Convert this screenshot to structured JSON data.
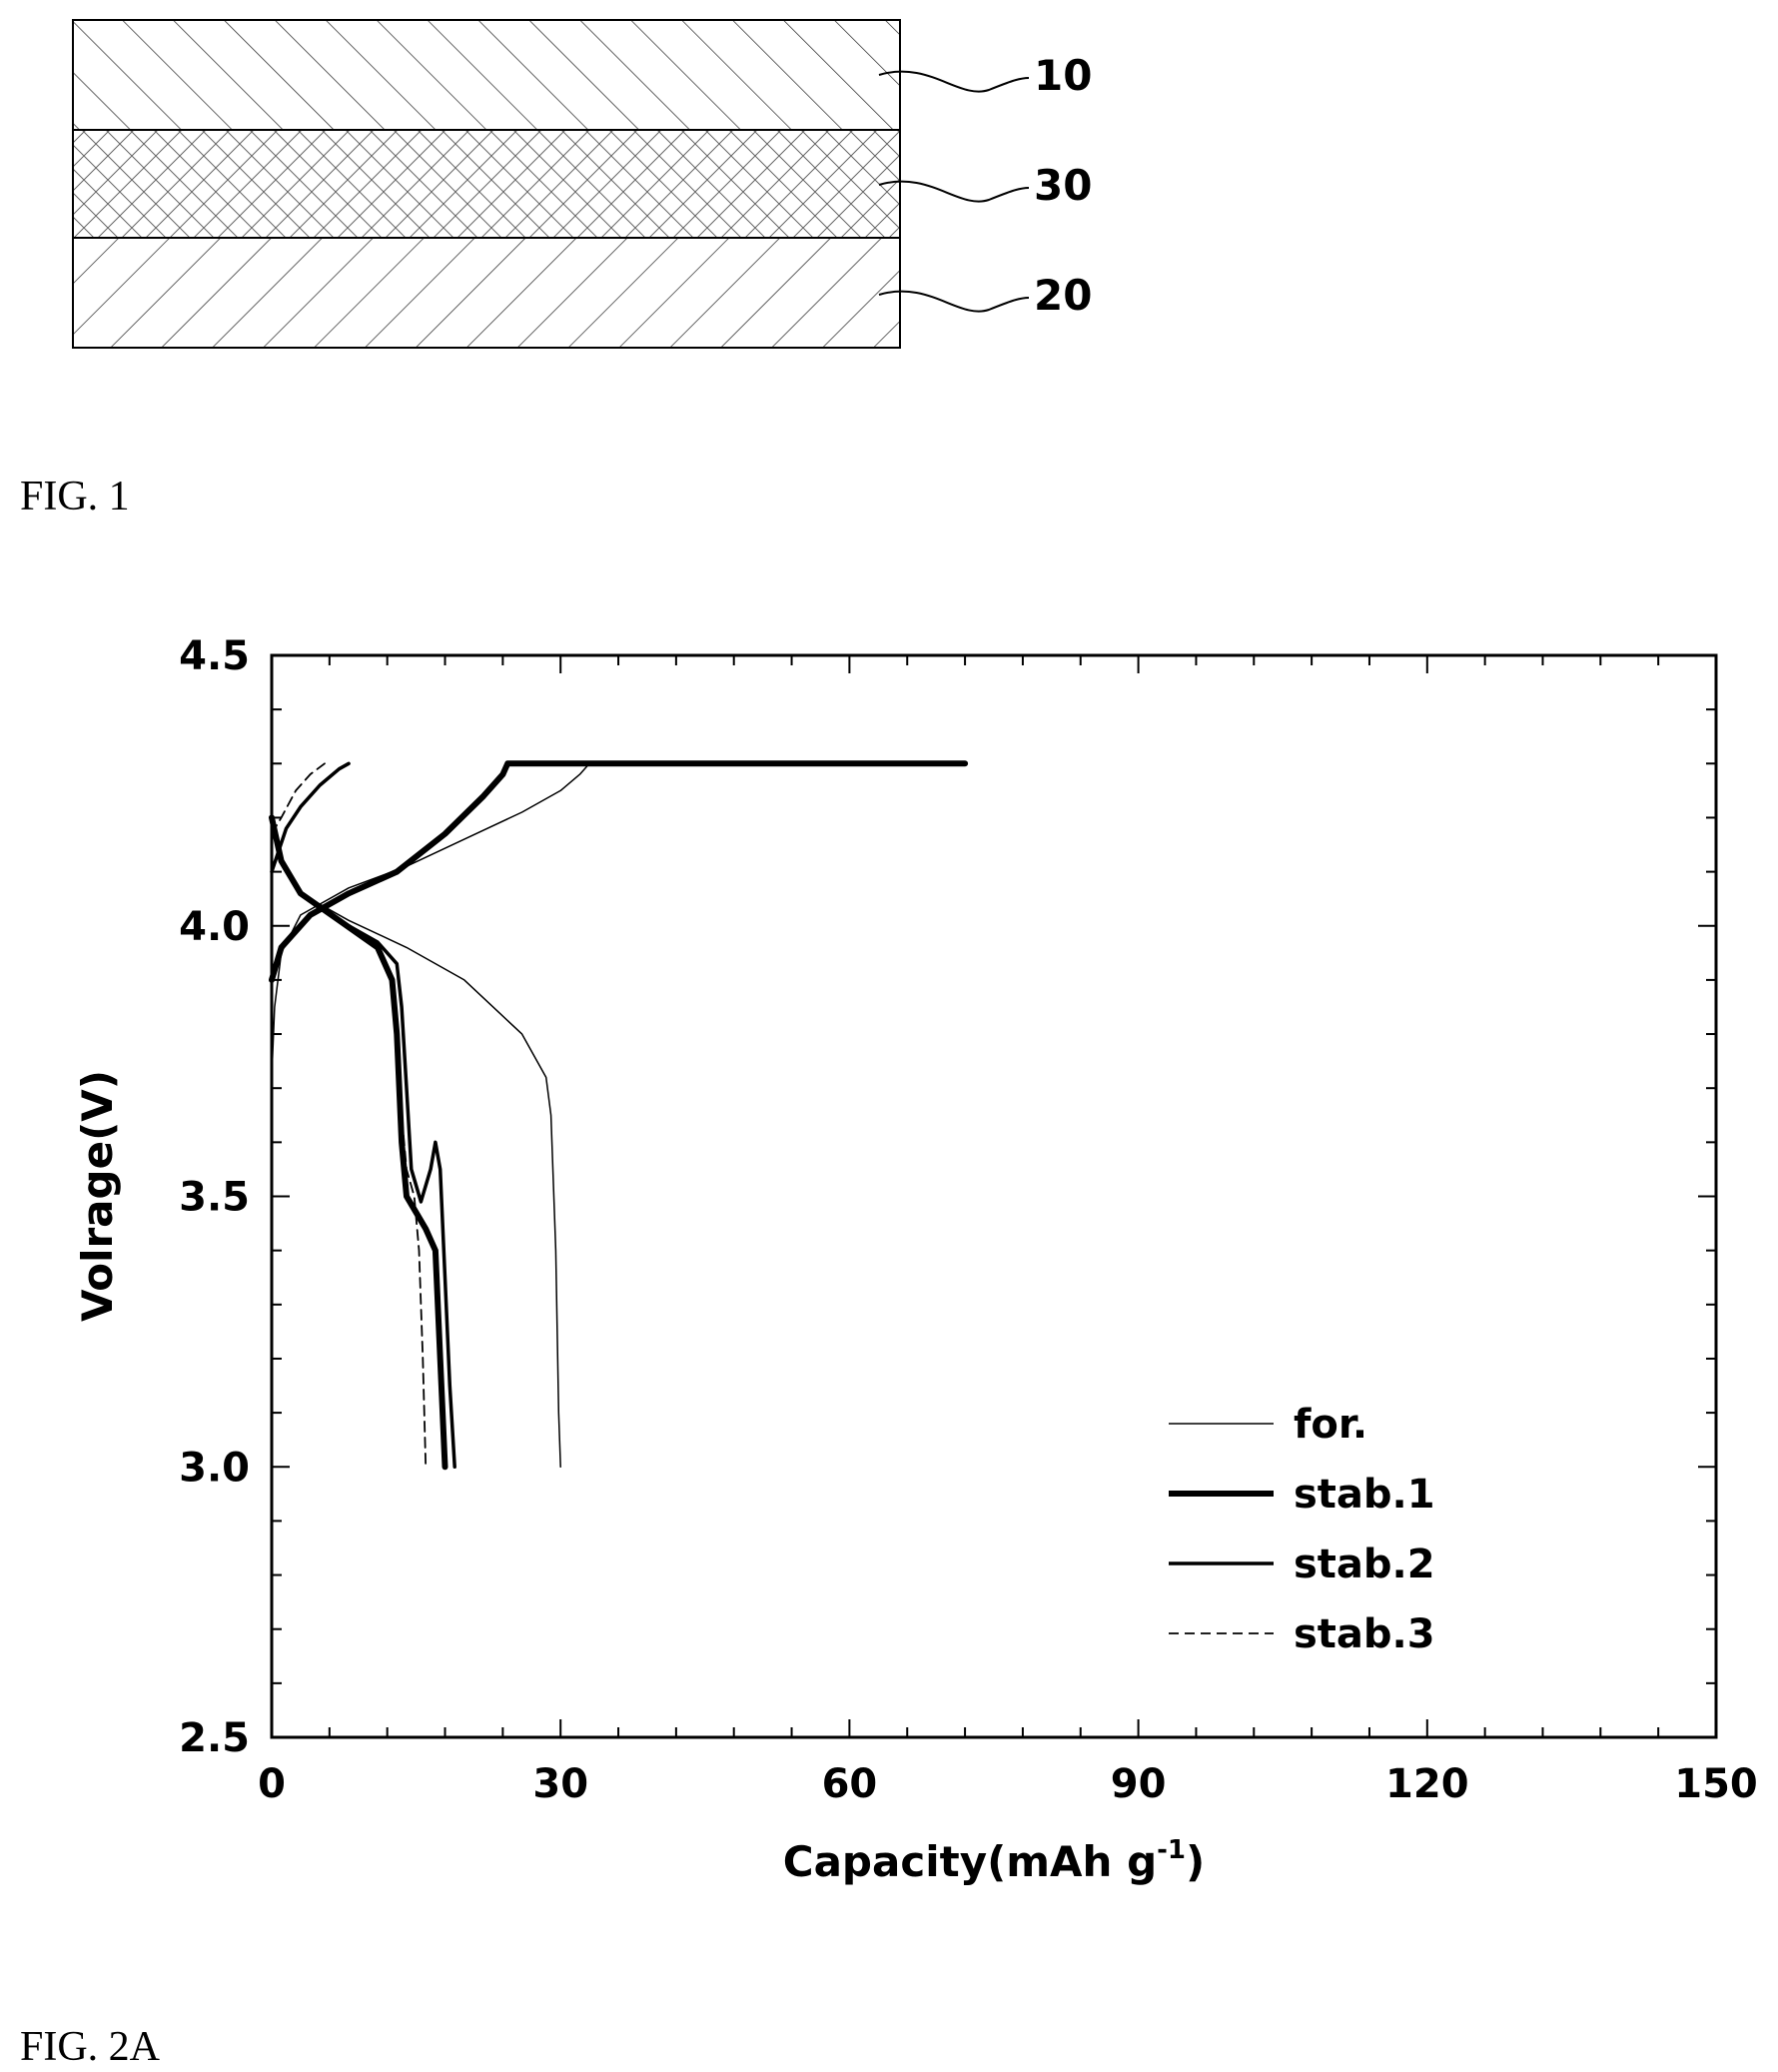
{
  "fig1": {
    "caption": "FIG. 1",
    "layers": [
      {
        "ref": "10",
        "hatch": "forward-diagonal"
      },
      {
        "ref": "30",
        "hatch": "cross-hatch"
      },
      {
        "ref": "20",
        "hatch": "backward-diagonal"
      }
    ]
  },
  "fig2a": {
    "caption": "FIG. 2A"
  },
  "chart_data": {
    "type": "line",
    "xlabel": "Capacity(mAh g",
    "xlabel_sup": "-1",
    "xlabel_end": ")",
    "ylabel": "Volrage(V)",
    "xlim": [
      0,
      150
    ],
    "ylim": [
      2.5,
      4.5
    ],
    "xticks": [
      0,
      30,
      60,
      90,
      120,
      150
    ],
    "yticks": [
      2.5,
      3.0,
      3.5,
      4.0,
      4.5
    ],
    "ytick_labels": [
      "2.5",
      "3.0",
      "3.5",
      "4.0",
      "4.5"
    ],
    "grid": false,
    "legend_position": "lower-right",
    "series": [
      {
        "name": "for.",
        "style": "thin",
        "charge": [
          [
            0,
            3.72
          ],
          [
            0.3,
            3.85
          ],
          [
            1,
            3.95
          ],
          [
            3,
            4.02
          ],
          [
            8,
            4.07
          ],
          [
            14,
            4.11
          ],
          [
            20,
            4.16
          ],
          [
            26,
            4.21
          ],
          [
            30,
            4.25
          ],
          [
            32,
            4.28
          ],
          [
            33,
            4.3
          ],
          [
            72,
            4.3
          ]
        ],
        "discharge": [
          [
            0,
            4.2
          ],
          [
            1,
            4.12
          ],
          [
            3,
            4.06
          ],
          [
            8,
            4.01
          ],
          [
            14,
            3.96
          ],
          [
            20,
            3.9
          ],
          [
            26,
            3.8
          ],
          [
            28.5,
            3.72
          ],
          [
            29,
            3.65
          ],
          [
            29.5,
            3.4
          ],
          [
            29.8,
            3.1
          ],
          [
            30,
            3.0
          ]
        ]
      },
      {
        "name": "stab.1",
        "style": "thick",
        "charge": [
          [
            0,
            3.9
          ],
          [
            1,
            3.96
          ],
          [
            4,
            4.02
          ],
          [
            8,
            4.06
          ],
          [
            13,
            4.1
          ],
          [
            18,
            4.17
          ],
          [
            22,
            4.24
          ],
          [
            24,
            4.28
          ],
          [
            24.5,
            4.3
          ],
          [
            72,
            4.3
          ]
        ],
        "discharge": [
          [
            0,
            4.2
          ],
          [
            1,
            4.12
          ],
          [
            3,
            4.06
          ],
          [
            7,
            4.01
          ],
          [
            11,
            3.96
          ],
          [
            12.5,
            3.9
          ],
          [
            13,
            3.8
          ],
          [
            13.5,
            3.6
          ],
          [
            14,
            3.5
          ],
          [
            15,
            3.47
          ],
          [
            16,
            3.44
          ],
          [
            17,
            3.4
          ],
          [
            17.5,
            3.2
          ],
          [
            18,
            3.0
          ]
        ]
      },
      {
        "name": "stab.2",
        "style": "medium",
        "charge": [
          [
            0,
            4.1
          ],
          [
            1.5,
            4.18
          ],
          [
            3,
            4.22
          ],
          [
            5,
            4.26
          ],
          [
            7,
            4.29
          ],
          [
            8,
            4.3
          ]
        ],
        "discharge": [
          [
            0,
            4.2
          ],
          [
            1,
            4.12
          ],
          [
            3,
            4.06
          ],
          [
            7,
            4.01
          ],
          [
            11,
            3.97
          ],
          [
            13,
            3.93
          ],
          [
            13.5,
            3.85
          ],
          [
            14,
            3.7
          ],
          [
            14.5,
            3.55
          ],
          [
            15.5,
            3.49
          ],
          [
            16.5,
            3.55
          ],
          [
            17,
            3.6
          ],
          [
            17.5,
            3.55
          ],
          [
            18,
            3.35
          ],
          [
            18.5,
            3.15
          ],
          [
            19,
            3.0
          ]
        ]
      },
      {
        "name": "stab.3",
        "style": "dashed",
        "charge": [
          [
            0,
            4.17
          ],
          [
            1,
            4.2
          ],
          [
            2.5,
            4.25
          ],
          [
            4,
            4.28
          ],
          [
            5.5,
            4.3
          ]
        ],
        "discharge": [
          [
            0,
            4.2
          ],
          [
            1,
            4.12
          ],
          [
            3,
            4.06
          ],
          [
            7,
            4.01
          ],
          [
            11,
            3.96
          ],
          [
            12.5,
            3.9
          ],
          [
            13,
            3.8
          ],
          [
            13.5,
            3.65
          ],
          [
            14,
            3.55
          ],
          [
            14.8,
            3.5
          ],
          [
            15.3,
            3.4
          ],
          [
            15.7,
            3.2
          ],
          [
            16,
            3.0
          ]
        ]
      }
    ]
  }
}
